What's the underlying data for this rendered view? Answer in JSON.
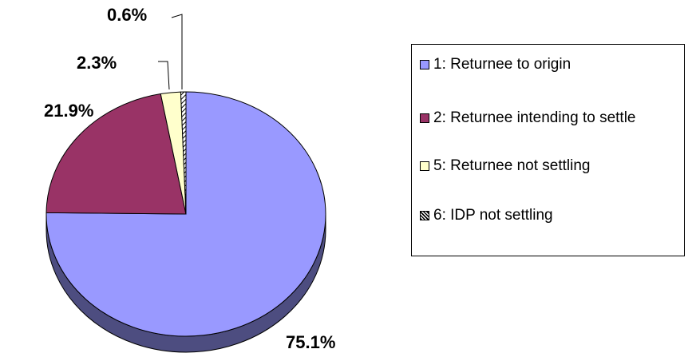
{
  "chart_data": {
    "type": "pie",
    "categories": [
      "1: Returnee to origin",
      "2: Returnee intending to settle",
      "5: Returnee not settling",
      "6: IDP not settling"
    ],
    "values": [
      75.1,
      21.9,
      2.3,
      0.6
    ],
    "value_labels": [
      "75.1%",
      "21.9%",
      "2.3%",
      "0.6%"
    ],
    "colors": [
      "#9999ff",
      "#993366",
      "#ffffcc",
      "hatch"
    ],
    "legend": "right"
  }
}
